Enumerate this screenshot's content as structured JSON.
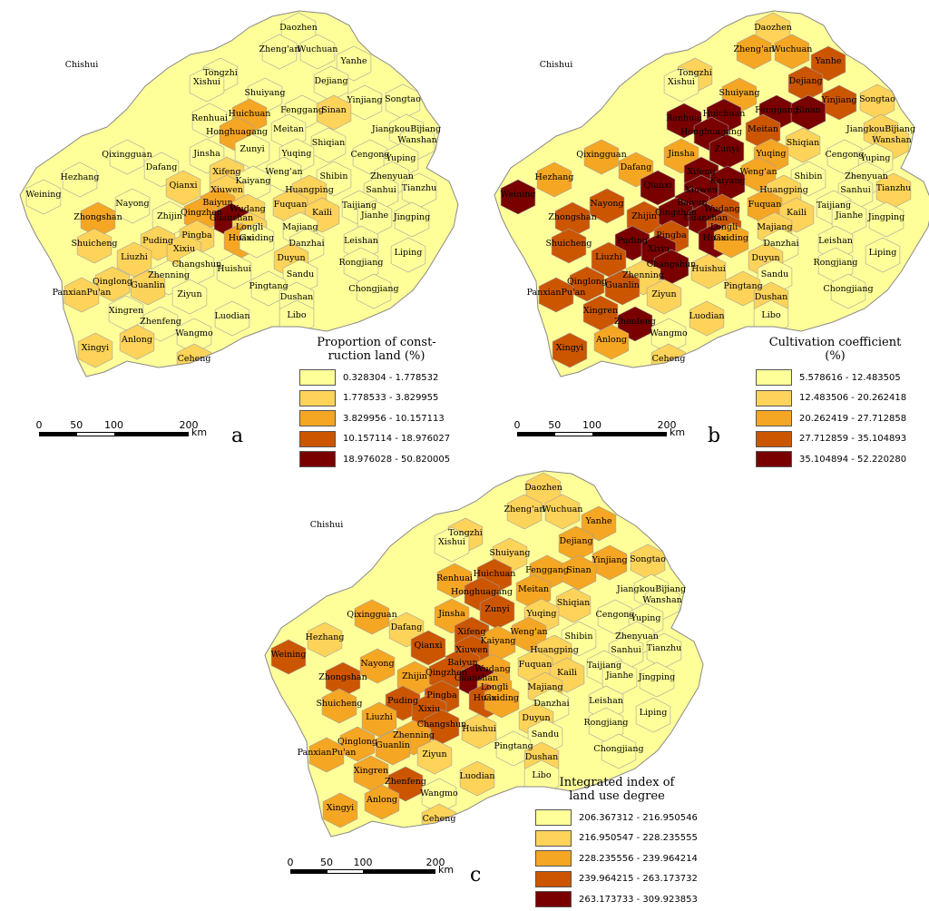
{
  "scale": {
    "ticks": [
      "0",
      "50",
      "100",
      "200"
    ],
    "unit": "km"
  },
  "panels": [
    {
      "letter": "a",
      "legend_title": "Proportion of const-\nruction land (%)",
      "classes": [
        {
          "label": "0.328304 - 1.778532",
          "color": "#ffff99"
        },
        {
          "label": "1.778533 - 3.829955",
          "color": "#fdd35a"
        },
        {
          "label": "3.829956 - 10.157113",
          "color": "#f5a623"
        },
        {
          "label": "10.157114 - 18.976027",
          "color": "#cc5500"
        },
        {
          "label": "18.976028 - 50.820005",
          "color": "#7a0000"
        }
      ]
    },
    {
      "letter": "b",
      "legend_title": "Cultivation coefficient\n(%)",
      "classes": [
        {
          "label": "5.578616 - 12.483505",
          "color": "#ffff99"
        },
        {
          "label": "12.483506 - 20.262418",
          "color": "#fdd35a"
        },
        {
          "label": "20.262419 - 27.712858",
          "color": "#f5a623"
        },
        {
          "label": "27.712859 - 35.104893",
          "color": "#cc5500"
        },
        {
          "label": "35.104894 - 52.220280",
          "color": "#7a0000"
        }
      ]
    },
    {
      "letter": "c",
      "legend_title": "Integrated index of\nland use degree",
      "classes": [
        {
          "label": "206.367312 - 216.950546",
          "color": "#ffff99"
        },
        {
          "label": "216.950547 - 228.235555",
          "color": "#fdd35a"
        },
        {
          "label": "228.235556 - 239.964214",
          "color": "#f5a623"
        },
        {
          "label": "239.964215 - 263.173732",
          "color": "#cc5500"
        },
        {
          "label": "263.173733 - 309.923853",
          "color": "#7a0000"
        }
      ]
    }
  ],
  "places": [
    "Daozhen",
    "Chishui",
    "Zheng'an",
    "Wuchuan",
    "Yanhe",
    "Tongzhi",
    "Xishui",
    "Dejiang",
    "Shuiyang",
    "Yinjiang",
    "Songtao",
    "Renhuai",
    "Huichuan",
    "Fenggang",
    "Sinan",
    "Honghuagang",
    "Meitan",
    "JiangkouBijiang",
    "Wanshan",
    "Zunyi",
    "Shiqian",
    "Qixingguan",
    "Dafang",
    "Jinsha",
    "Yuqing",
    "Cengong",
    "Yuping",
    "Xifeng",
    "Weng'an",
    "Shibin",
    "Zhenyuan",
    "Hezhang",
    "Qianxi",
    "Kaiyang",
    "Weining",
    "Xiuwen",
    "Huangping",
    "Sanhui",
    "Tianzhu",
    "Nayong",
    "Baiyun",
    "Wudang",
    "Fuquan",
    "Kaili",
    "Taijiang",
    "Jianhe",
    "Jingping",
    "Zhongshan",
    "Zhijin",
    "Qingzhen",
    "Guanshan",
    "Longli",
    "Majiang",
    "Leishan",
    "Puding",
    "Pingba",
    "Huaxi",
    "Guiding",
    "Danzhai",
    "Shuicheng",
    "Xixiu",
    "Liuzhi",
    "Liping",
    "Changshun",
    "Duyun",
    "Huishui",
    "Rongjiang",
    "Zhenning",
    "Sandu",
    "Qinglong",
    "Guanlin",
    "Pingtang",
    "PanxianPu'an",
    "Chongjiang",
    "Ziyun",
    "Dushan",
    "Xingren",
    "Luodian",
    "Libo",
    "Zhenfeng",
    "Anlong",
    "Wangmo",
    "Xingyi",
    "Ceheng"
  ],
  "region_classes": {
    "a": [
      0,
      0,
      0,
      0,
      0,
      0,
      0,
      0,
      0,
      0,
      0,
      0,
      2,
      0,
      1,
      2,
      0,
      0,
      0,
      0,
      0,
      0,
      0,
      0,
      0,
      0,
      0,
      1,
      0,
      0,
      0,
      0,
      1,
      0,
      0,
      1,
      1,
      0,
      0,
      0,
      2,
      1,
      1,
      1,
      0,
      0,
      0,
      2,
      0,
      2,
      4,
      1,
      0,
      0,
      1,
      1,
      2,
      0,
      0,
      1,
      1,
      1,
      0,
      0,
      1,
      0,
      0,
      0,
      0,
      1,
      1,
      0,
      1,
      0,
      0,
      0,
      0,
      0,
      0,
      0,
      1,
      0,
      1,
      1
    ],
    "b": [
      1,
      0,
      2,
      2,
      3,
      1,
      0,
      3,
      2,
      3,
      1,
      4,
      4,
      4,
      4,
      4,
      3,
      1,
      1,
      4,
      1,
      2,
      2,
      2,
      2,
      0,
      0,
      4,
      2,
      0,
      0,
      2,
      4,
      4,
      4,
      4,
      1,
      0,
      1,
      3,
      4,
      3,
      2,
      1,
      0,
      0,
      0,
      3,
      3,
      4,
      4,
      3,
      1,
      0,
      4,
      3,
      4,
      2,
      0,
      3,
      4,
      3,
      0,
      4,
      1,
      1,
      0,
      1,
      0,
      3,
      3,
      1,
      3,
      0,
      1,
      1,
      3,
      1,
      0,
      4,
      2,
      0,
      3,
      1
    ],
    "c": [
      1,
      0,
      1,
      1,
      2,
      1,
      0,
      2,
      1,
      2,
      1,
      2,
      3,
      2,
      2,
      3,
      2,
      0,
      0,
      3,
      1,
      2,
      1,
      2,
      1,
      0,
      0,
      3,
      2,
      0,
      0,
      1,
      3,
      2,
      3,
      3,
      1,
      0,
      0,
      2,
      3,
      2,
      1,
      1,
      0,
      0,
      0,
      3,
      2,
      3,
      4,
      2,
      1,
      0,
      3,
      3,
      3,
      2,
      0,
      2,
      3,
      2,
      0,
      3,
      1,
      1,
      0,
      2,
      0,
      2,
      2,
      0,
      2,
      0,
      1,
      1,
      2,
      1,
      0,
      3,
      2,
      0,
      2,
      1
    ]
  }
}
